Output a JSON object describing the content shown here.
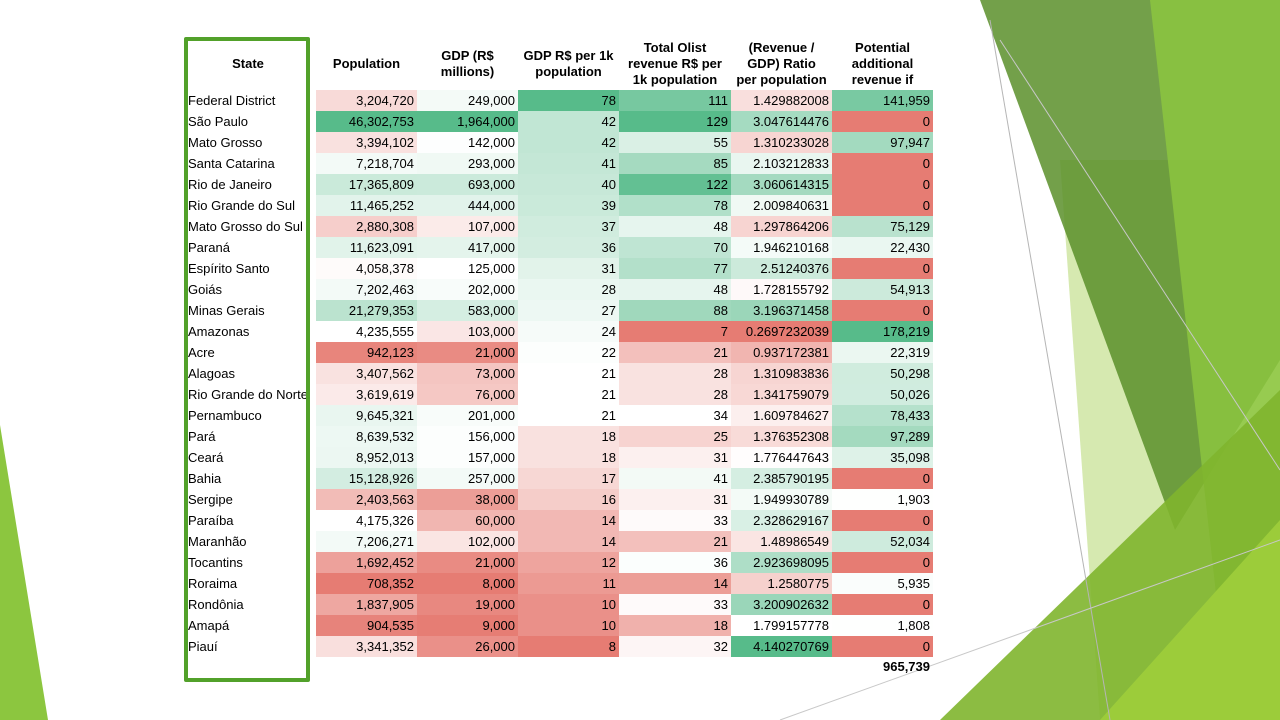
{
  "columns": [
    {
      "key": "state",
      "label": "State"
    },
    {
      "key": "population",
      "label": "Population"
    },
    {
      "key": "gdp",
      "label": "GDP (R$ millions)",
      "lines": [
        "GDP (R$",
        "millions)"
      ]
    },
    {
      "key": "gdp_per_1k",
      "label": "GDP R$ per 1k population",
      "lines": [
        "GDP R$ per 1k",
        "population"
      ]
    },
    {
      "key": "revenue_per_1k",
      "label": "Total Olist revenue R$ per 1k population",
      "lines": [
        "Total Olist",
        "revenue R$ per",
        "1k population"
      ]
    },
    {
      "key": "ratio",
      "label": "(Revenue / GDP) Ratio per population",
      "lines": [
        "(Revenue /",
        "GDP) Ratio",
        "per population"
      ]
    },
    {
      "key": "potential",
      "label": "Potential additional revenue if",
      "lines": [
        "Potential",
        "additional",
        "revenue if"
      ]
    }
  ],
  "rows": [
    {
      "state": "Federal District",
      "population": "3,204,720",
      "gdp": "249,000",
      "gdp_per_1k": "78",
      "revenue_per_1k": "111",
      "ratio": "1.429882008",
      "potential": "141,959"
    },
    {
      "state": "São Paulo",
      "population": "46,302,753",
      "gdp": "1,964,000",
      "gdp_per_1k": "42",
      "revenue_per_1k": "129",
      "ratio": "3.047614476",
      "potential": "0"
    },
    {
      "state": "Mato Grosso",
      "population": "3,394,102",
      "gdp": "142,000",
      "gdp_per_1k": "42",
      "revenue_per_1k": "55",
      "ratio": "1.310233028",
      "potential": "97,947"
    },
    {
      "state": "Santa Catarina",
      "population": "7,218,704",
      "gdp": "293,000",
      "gdp_per_1k": "41",
      "revenue_per_1k": "85",
      "ratio": "2.103212833",
      "potential": "0"
    },
    {
      "state": "Rio de Janeiro",
      "population": "17,365,809",
      "gdp": "693,000",
      "gdp_per_1k": "40",
      "revenue_per_1k": "122",
      "ratio": "3.060614315",
      "potential": "0"
    },
    {
      "state": "Rio Grande do Sul",
      "population": "11,465,252",
      "gdp": "444,000",
      "gdp_per_1k": "39",
      "revenue_per_1k": "78",
      "ratio": "2.009840631",
      "potential": "0"
    },
    {
      "state": "Mato Grosso do Sul",
      "population": "2,880,308",
      "gdp": "107,000",
      "gdp_per_1k": "37",
      "revenue_per_1k": "48",
      "ratio": "1.297864206",
      "potential": "75,129"
    },
    {
      "state": "Paraná",
      "population": "11,623,091",
      "gdp": "417,000",
      "gdp_per_1k": "36",
      "revenue_per_1k": "70",
      "ratio": "1.946210168",
      "potential": "22,430"
    },
    {
      "state": "Espírito Santo",
      "population": "4,058,378",
      "gdp": "125,000",
      "gdp_per_1k": "31",
      "revenue_per_1k": "77",
      "ratio": "2.51240376",
      "potential": "0"
    },
    {
      "state": "Goiás",
      "population": "7,202,463",
      "gdp": "202,000",
      "gdp_per_1k": "28",
      "revenue_per_1k": "48",
      "ratio": "1.728155792",
      "potential": "54,913"
    },
    {
      "state": "Minas Gerais",
      "population": "21,279,353",
      "gdp": "583,000",
      "gdp_per_1k": "27",
      "revenue_per_1k": "88",
      "ratio": "3.196371458",
      "potential": "0"
    },
    {
      "state": "Amazonas",
      "population": "4,235,555",
      "gdp": "103,000",
      "gdp_per_1k": "24",
      "revenue_per_1k": "7",
      "ratio": "0.2697232039",
      "potential": "178,219"
    },
    {
      "state": "Acre",
      "population": "942,123",
      "gdp": "21,000",
      "gdp_per_1k": "22",
      "revenue_per_1k": "21",
      "ratio": "0.937172381",
      "potential": "22,319"
    },
    {
      "state": "Alagoas",
      "population": "3,407,562",
      "gdp": "73,000",
      "gdp_per_1k": "21",
      "revenue_per_1k": "28",
      "ratio": "1.310983836",
      "potential": "50,298"
    },
    {
      "state": "Rio Grande do Norte",
      "population": "3,619,619",
      "gdp": "76,000",
      "gdp_per_1k": "21",
      "revenue_per_1k": "28",
      "ratio": "1.341759079",
      "potential": "50,026"
    },
    {
      "state": "Pernambuco",
      "population": "9,645,321",
      "gdp": "201,000",
      "gdp_per_1k": "21",
      "revenue_per_1k": "34",
      "ratio": "1.609784627",
      "potential": "78,433"
    },
    {
      "state": "Pará",
      "population": "8,639,532",
      "gdp": "156,000",
      "gdp_per_1k": "18",
      "revenue_per_1k": "25",
      "ratio": "1.376352308",
      "potential": "97,289"
    },
    {
      "state": "Ceará",
      "population": "8,952,013",
      "gdp": "157,000",
      "gdp_per_1k": "18",
      "revenue_per_1k": "31",
      "ratio": "1.776447643",
      "potential": "35,098"
    },
    {
      "state": "Bahia",
      "population": "15,128,926",
      "gdp": "257,000",
      "gdp_per_1k": "17",
      "revenue_per_1k": "41",
      "ratio": "2.385790195",
      "potential": "0"
    },
    {
      "state": "Sergipe",
      "population": "2,403,563",
      "gdp": "38,000",
      "gdp_per_1k": "16",
      "revenue_per_1k": "31",
      "ratio": "1.949930789",
      "potential": "1,903"
    },
    {
      "state": "Paraíba",
      "population": "4,175,326",
      "gdp": "60,000",
      "gdp_per_1k": "14",
      "revenue_per_1k": "33",
      "ratio": "2.328629167",
      "potential": "0"
    },
    {
      "state": "Maranhão",
      "population": "7,206,271",
      "gdp": "102,000",
      "gdp_per_1k": "14",
      "revenue_per_1k": "21",
      "ratio": "1.48986549",
      "potential": "52,034"
    },
    {
      "state": "Tocantins",
      "population": "1,692,452",
      "gdp": "21,000",
      "gdp_per_1k": "12",
      "revenue_per_1k": "36",
      "ratio": "2.923698095",
      "potential": "0"
    },
    {
      "state": "Roraima",
      "population": "708,352",
      "gdp": "8,000",
      "gdp_per_1k": "11",
      "revenue_per_1k": "14",
      "ratio": "1.2580775",
      "potential": "5,935"
    },
    {
      "state": "Rondônia",
      "population": "1,837,905",
      "gdp": "19,000",
      "gdp_per_1k": "10",
      "revenue_per_1k": "33",
      "ratio": "3.200902632",
      "potential": "0"
    },
    {
      "state": "Amapá",
      "population": "904,535",
      "gdp": "9,000",
      "gdp_per_1k": "10",
      "revenue_per_1k": "18",
      "ratio": "1.799157778",
      "potential": "1,808"
    },
    {
      "state": "Piauí",
      "population": "3,341,352",
      "gdp": "26,000",
      "gdp_per_1k": "8",
      "revenue_per_1k": "32",
      "ratio": "4.140270769",
      "potential": "0"
    }
  ],
  "total_potential": "965,739",
  "colors": {
    "scale_low": "#e67c73",
    "scale_mid": "#ffffff",
    "scale_high": "#57bb8a",
    "highlight_border": "#52a12a",
    "deco_green_dark": "#5a8f2a",
    "deco_green": "#8cc63f",
    "deco_green_light": "#c5e08f"
  }
}
